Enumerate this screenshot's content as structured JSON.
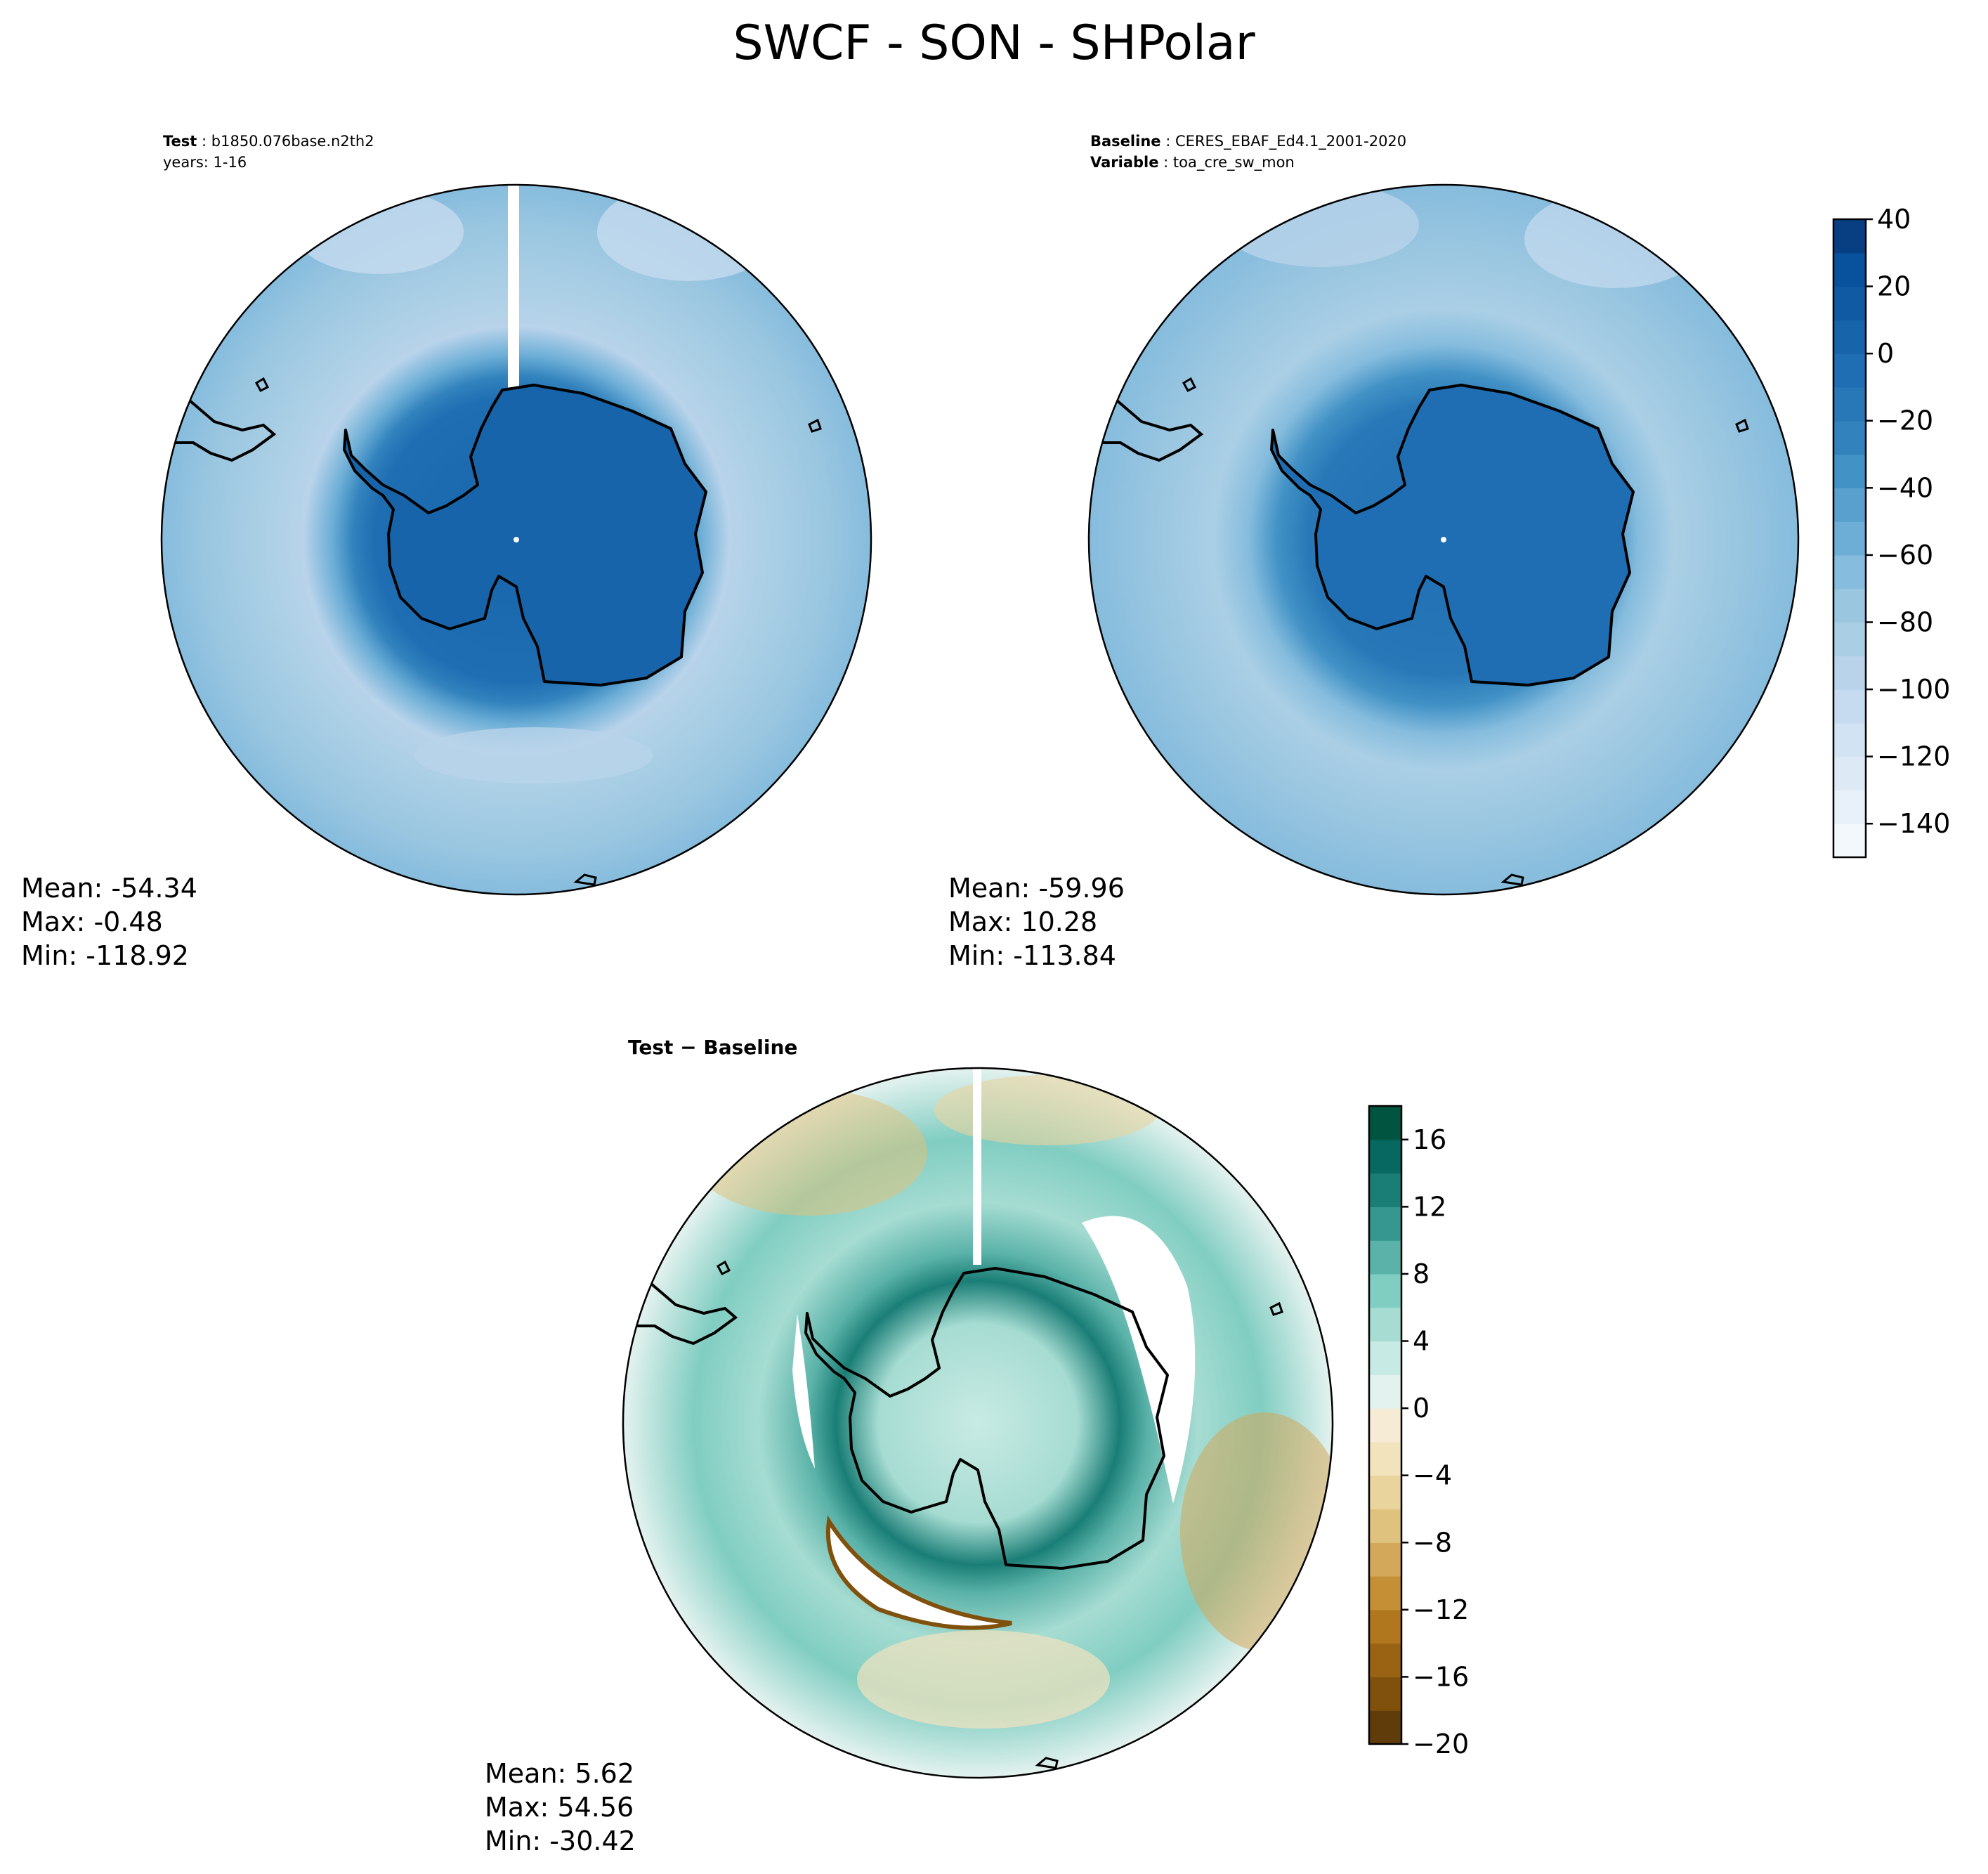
{
  "page": {
    "title": "SWCF - SON - SHPolar"
  },
  "panels": {
    "test": {
      "label_key": "Test",
      "label_value": "b1850.076base.n2th2",
      "years": "years: 1-16",
      "mean": "Mean: -54.34",
      "max": "Max: -0.48",
      "min": "Min: -118.92"
    },
    "baseline": {
      "label_key": "Baseline",
      "label_value": "CERES_EBAF_Ed4.1_2001-2020",
      "variable_key": "Variable",
      "variable_value": "toa_cre_sw_mon",
      "mean": "Mean: -59.96",
      "max": "Max: 10.28",
      "min": "Min: -113.84"
    },
    "diff": {
      "title": "Test − Baseline",
      "mean": "Mean:  5.62",
      "max": "Max: 54.56",
      "min": "Min: -30.42"
    }
  },
  "chart_data": [
    {
      "type": "heatmap",
      "projection": "south-polar-stereographic",
      "panel": "test",
      "field": "SWCF",
      "approx_ocean_value": -80,
      "approx_antarctic_value": -10,
      "value_range": [
        -118.92,
        -0.48
      ]
    },
    {
      "type": "heatmap",
      "projection": "south-polar-stereographic",
      "panel": "baseline",
      "field": "SWCF",
      "approx_ocean_value": -80,
      "approx_antarctic_value": -10,
      "value_range": [
        -113.84,
        10.28
      ]
    },
    {
      "type": "heatmap",
      "projection": "south-polar-stereographic",
      "panel": "difference",
      "value_range": [
        -30.42,
        54.56
      ]
    }
  ],
  "colorbars": {
    "main": {
      "levels": [
        -150,
        -140,
        -130,
        -120,
        -110,
        -100,
        -90,
        -80,
        -70,
        -60,
        -50,
        -40,
        -30,
        -20,
        -10,
        0,
        10,
        20,
        30,
        40
      ],
      "colors": [
        "#f3f8fd",
        "#e8f1fa",
        "#dde9f5",
        "#d2e3f3",
        "#c6dbef",
        "#b8d3ea",
        "#aacfe5",
        "#9ac6e0",
        "#86bcdd",
        "#6caed6",
        "#59a0cf",
        "#4292c6",
        "#3182bd",
        "#2878b8",
        "#1f6eb3",
        "#1764ab",
        "#0f5aa3",
        "#08519c",
        "#083f82"
      ],
      "ticks": [
        -140,
        -120,
        -100,
        -80,
        -60,
        -40,
        -20,
        0,
        20,
        40
      ],
      "tick_labels": [
        "−140",
        "−120",
        "−100",
        "−80",
        "−60",
        "−40",
        "−20",
        "0",
        "20",
        "40"
      ]
    },
    "diff": {
      "levels": [
        -20,
        -18,
        -16,
        -14,
        -12,
        -10,
        -8,
        -6,
        -4,
        -2,
        0,
        2,
        4,
        6,
        8,
        10,
        12,
        14,
        16,
        18
      ],
      "colors": [
        "#5f3c0a",
        "#80510d",
        "#9a6314",
        "#b0771f",
        "#c48f35",
        "#d4a85a",
        "#dfc27d",
        "#ead49e",
        "#f2e3bd",
        "#f6ecd6",
        "#e4f2ef",
        "#c8eae4",
        "#a6dcd2",
        "#80cdc1",
        "#5ab2a8",
        "#35978f",
        "#1a7e76",
        "#066860",
        "#01543f"
      ],
      "ticks": [
        -20,
        -16,
        -12,
        -8,
        -4,
        0,
        4,
        8,
        12,
        16
      ],
      "tick_labels": [
        "−20",
        "−16",
        "−12",
        "−8",
        "−4",
        "0",
        "4",
        "8",
        "12",
        "16"
      ]
    }
  }
}
